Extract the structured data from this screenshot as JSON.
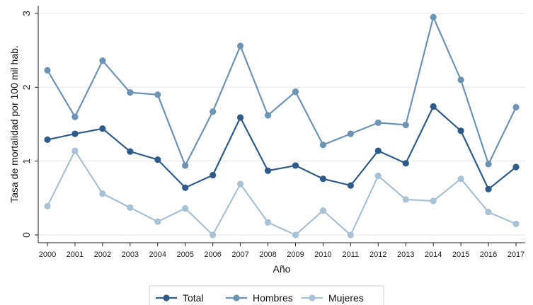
{
  "chart_data": {
    "type": "line",
    "xlabel": "Año",
    "ylabel": "Tasa de mortalidad por 100 mil hab.",
    "x": [
      "2000",
      "2001",
      "2002",
      "2003",
      "2004",
      "2005",
      "2006",
      "2007",
      "2008",
      "2009",
      "2010",
      "2011",
      "2012",
      "2013",
      "2014",
      "2015",
      "2016",
      "2017"
    ],
    "yticks": [
      "0",
      "1",
      "2",
      "3"
    ],
    "ylim": [
      0,
      3
    ],
    "grid": "horizontal",
    "legend_position": "bottom",
    "series": [
      {
        "name": "Total",
        "color": "#2e5b8a",
        "values": [
          1.29,
          1.37,
          1.44,
          1.13,
          1.02,
          0.64,
          0.81,
          1.59,
          0.87,
          0.94,
          0.76,
          0.67,
          1.14,
          0.97,
          1.74,
          1.41,
          0.62,
          0.92
        ]
      },
      {
        "name": "Hombres",
        "color": "#6c93b3",
        "values": [
          2.23,
          1.6,
          2.36,
          1.93,
          1.9,
          0.94,
          1.67,
          2.56,
          1.62,
          1.94,
          1.22,
          1.37,
          1.52,
          1.49,
          2.95,
          2.1,
          0.96,
          1.73
        ]
      },
      {
        "name": "Mujeres",
        "color": "#a8c1d4",
        "values": [
          0.39,
          1.14,
          0.56,
          0.37,
          0.18,
          0.36,
          0.0,
          0.69,
          0.17,
          0.0,
          0.33,
          0.0,
          0.8,
          0.48,
          0.46,
          0.76,
          0.31,
          0.15
        ]
      }
    ]
  }
}
